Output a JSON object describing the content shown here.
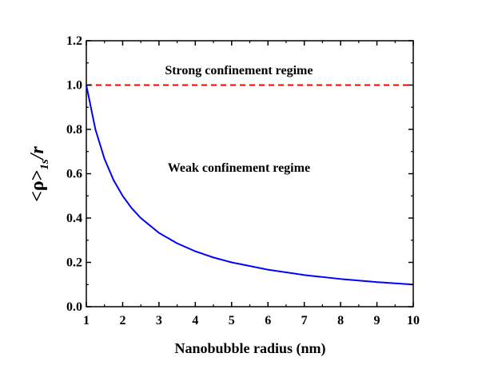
{
  "chart_data": {
    "type": "line",
    "xlabel": "Nanobubble radius (nm)",
    "ylabel": {
      "main": "<ρ>",
      "subscript": "1s",
      "suffix": "/r"
    },
    "xlim": [
      1,
      10
    ],
    "ylim": [
      0,
      1.2
    ],
    "x_ticks": [
      "1",
      "2",
      "3",
      "4",
      "5",
      "6",
      "7",
      "8",
      "9",
      "10"
    ],
    "y_ticks": [
      "0.0",
      "0.2",
      "0.4",
      "0.6",
      "0.8",
      "1.0",
      "1.2"
    ],
    "grid": false,
    "annotations": [
      {
        "text": "Strong confinement regime",
        "x": 5.2,
        "y": 1.07
      },
      {
        "text": "Weak confinement regime",
        "x": 5.2,
        "y": 0.63
      }
    ],
    "series": [
      {
        "style": "solid",
        "color": "#0000ff",
        "x": [
          1.0,
          1.25,
          1.5,
          1.75,
          2.0,
          2.25,
          2.5,
          3.0,
          3.5,
          4.0,
          4.5,
          5.0,
          6.0,
          7.0,
          8.0,
          9.0,
          10.0
        ],
        "y": [
          1.0,
          0.8,
          0.667,
          0.571,
          0.5,
          0.444,
          0.4,
          0.333,
          0.286,
          0.25,
          0.222,
          0.2,
          0.167,
          0.143,
          0.125,
          0.111,
          0.1
        ]
      },
      {
        "style": "dashed",
        "color": "#ff0000",
        "x": [
          1,
          10
        ],
        "y": [
          1.0,
          1.0
        ]
      }
    ]
  }
}
